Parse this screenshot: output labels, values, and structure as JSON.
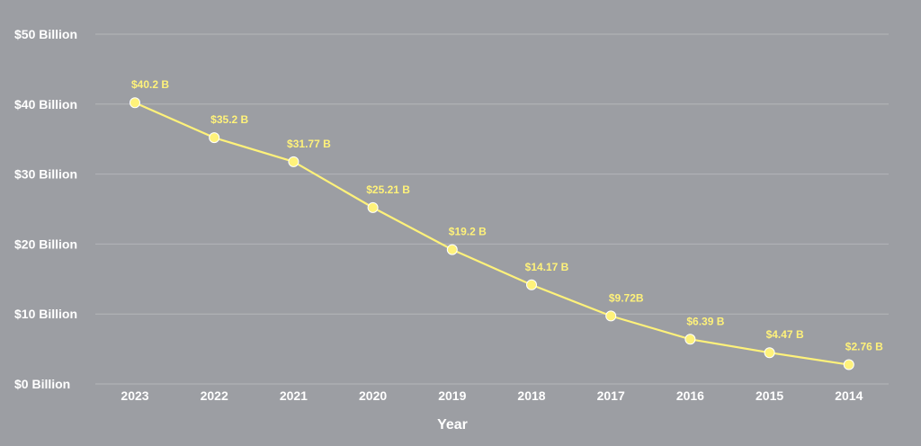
{
  "chart_data": {
    "type": "line",
    "title": "",
    "xlabel": "Year",
    "ylabel": "",
    "categories": [
      "2023",
      "2022",
      "2021",
      "2020",
      "2019",
      "2018",
      "2017",
      "2016",
      "2015",
      "2014"
    ],
    "series": [
      {
        "values": [
          40.2,
          35.2,
          31.77,
          25.21,
          19.2,
          14.17,
          9.72,
          6.39,
          4.47,
          2.76
        ],
        "labels": [
          "$40.2 B",
          "$35.2 B",
          "$31.77 B",
          "$25.21 B",
          "$19.2 B",
          "$14.17 B",
          "$9.72B",
          "$6.39 B",
          "$4.47 B",
          "$2.76 B"
        ],
        "color": "#fff27a"
      }
    ],
    "yticks": [
      0,
      10,
      20,
      30,
      40,
      50
    ],
    "ytick_labels": [
      "$0 Billion",
      "$10 Billion",
      "$20 Billion",
      "$30 Billion",
      "$40 Billion",
      "$50 Billion"
    ],
    "ylim": [
      0,
      50
    ],
    "grid": true,
    "legend": "none"
  },
  "colors": {
    "background": "#9c9ea3",
    "grid": "#b3b5b9",
    "text": "#ffffff",
    "line": "#fff27a"
  }
}
